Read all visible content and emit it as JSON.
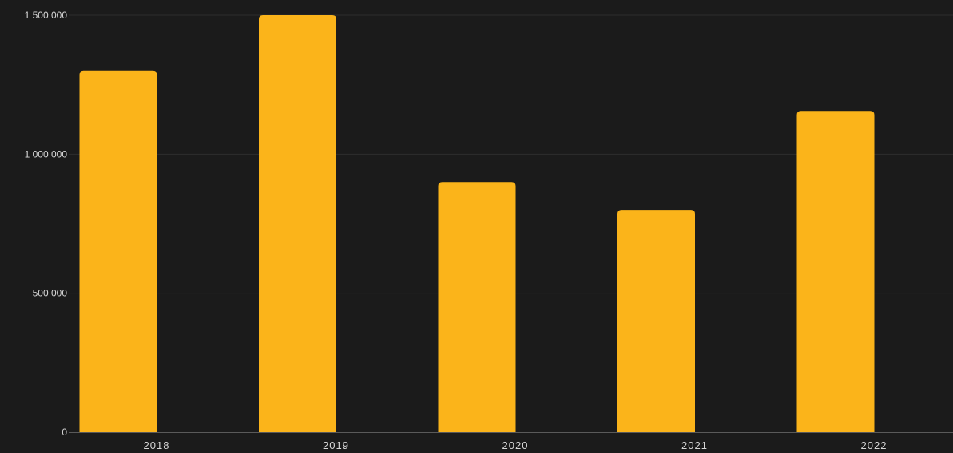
{
  "chart_data": {
    "type": "bar",
    "categories": [
      "2018",
      "2019",
      "2020",
      "2021",
      "2022"
    ],
    "values": [
      1300000,
      1500000,
      900000,
      800000,
      1155000
    ],
    "y_ticks": [
      0,
      500000,
      1000000,
      1500000
    ],
    "y_tick_labels": [
      "0",
      "500 000",
      "1 000 000",
      "1 500 000"
    ],
    "ylim": [
      0,
      1500000
    ],
    "grid": true,
    "colors": {
      "bar": "#fbb41a",
      "background": "#1b1b1b",
      "grid": "#2e2e2e",
      "text": "#d8d8d8"
    }
  }
}
